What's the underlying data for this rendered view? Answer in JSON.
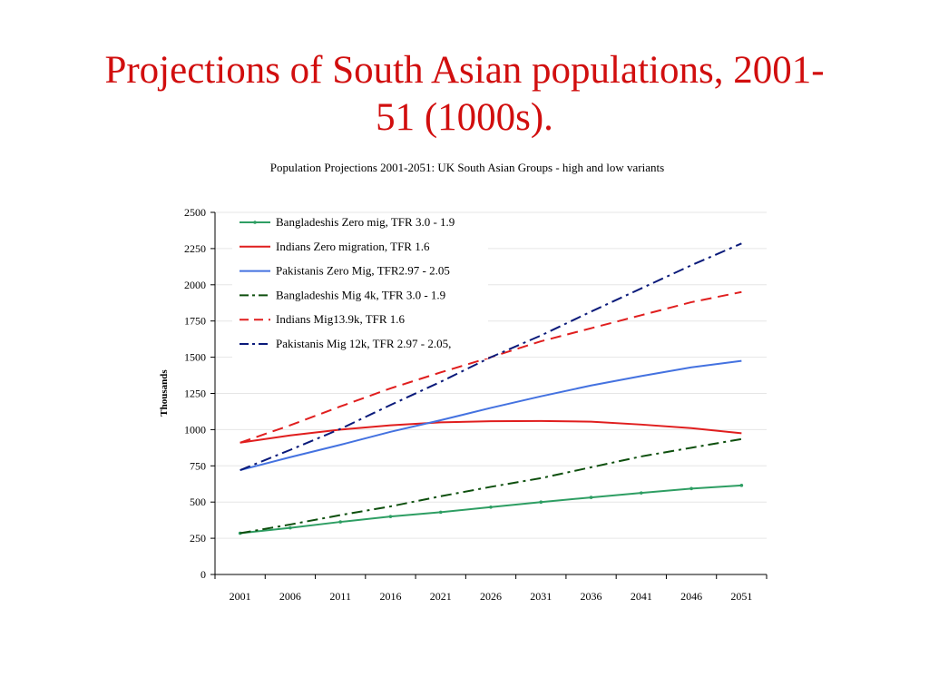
{
  "slide": {
    "title_line1": "Projections of South Asian populations, 2001-",
    "title_line2": "51 (1000s)."
  },
  "chart_data": {
    "type": "line",
    "title": "Population Projections 2001-2051: UK South Asian Groups -  high and low variants",
    "xlabel": "",
    "ylabel": "Thousands",
    "x": [
      2001,
      2006,
      2011,
      2016,
      2021,
      2026,
      2031,
      2036,
      2041,
      2046,
      2051
    ],
    "ylim": [
      0,
      2500
    ],
    "yticks": [
      0,
      250,
      500,
      750,
      1000,
      1250,
      1500,
      1750,
      2000,
      2250,
      2500
    ],
    "grid": true,
    "legend_position": "top-left",
    "series": [
      {
        "name": "Bangladeshis Zero mig, TFR 3.0 - 1.9",
        "color": "#2e9e63",
        "dash": "solid",
        "markers": true,
        "values": [
          285,
          322,
          363,
          400,
          430,
          465,
          500,
          532,
          563,
          593,
          615
        ]
      },
      {
        "name": "Indians Zero migration, TFR 1.6",
        "color": "#e01e1e",
        "dash": "solid",
        "markers": false,
        "values": [
          910,
          960,
          1000,
          1030,
          1050,
          1058,
          1060,
          1055,
          1035,
          1010,
          975
        ]
      },
      {
        "name": "Pakistanis Zero Mig, TFR2.97 - 2.05",
        "color": "#4472e0",
        "dash": "solid",
        "markers": false,
        "values": [
          720,
          810,
          895,
          985,
          1065,
          1150,
          1230,
          1305,
          1370,
          1430,
          1475
        ]
      },
      {
        "name": "Bangladeshis Mig 4k, TFR 3.0 - 1.9",
        "color": "#0d4f0d",
        "dash": "dashdot",
        "markers": false,
        "values": [
          285,
          345,
          410,
          470,
          540,
          605,
          665,
          740,
          815,
          875,
          935
        ]
      },
      {
        "name": "Indians Mig13.9k, TFR 1.6",
        "color": "#e01e1e",
        "dash": "dash",
        "markers": false,
        "values": [
          910,
          1030,
          1160,
          1285,
          1395,
          1500,
          1610,
          1700,
          1790,
          1880,
          1950
        ]
      },
      {
        "name": "Pakistanis Mig 12k, TFR 2.97 - 2.05,",
        "color": "#0a1a7a",
        "dash": "dashdot",
        "markers": false,
        "values": [
          720,
          860,
          1005,
          1170,
          1330,
          1500,
          1650,
          1815,
          1975,
          2135,
          2285
        ]
      }
    ]
  }
}
